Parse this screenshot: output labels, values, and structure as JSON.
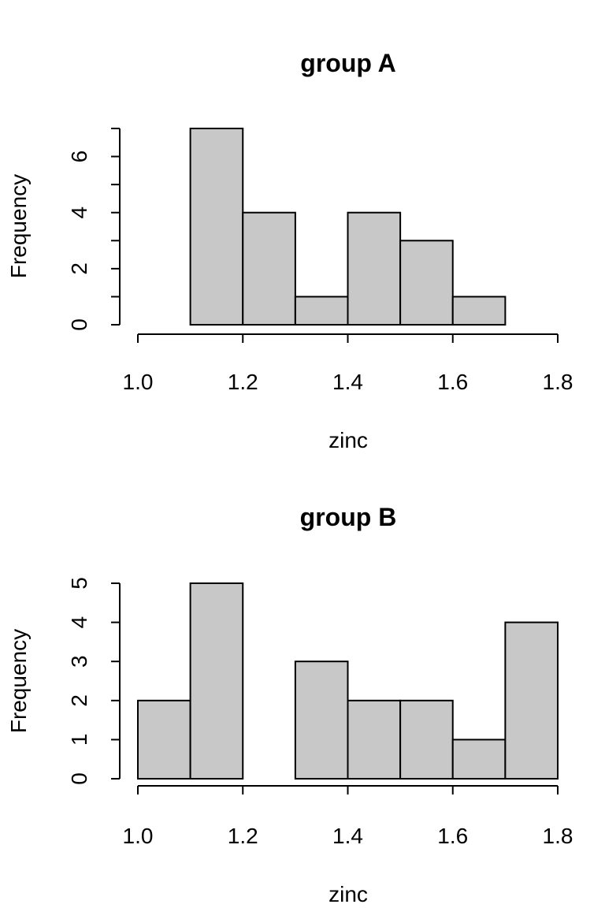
{
  "chart_data": [
    {
      "type": "bar",
      "title": "group A",
      "xlabel": "zinc",
      "ylabel": "Frequency",
      "bins": [
        [
          1.1,
          1.2
        ],
        [
          1.2,
          1.3
        ],
        [
          1.3,
          1.4
        ],
        [
          1.4,
          1.5
        ],
        [
          1.5,
          1.6
        ],
        [
          1.6,
          1.7
        ]
      ],
      "values": [
        7,
        4,
        1,
        4,
        3,
        1
      ],
      "xlim": [
        1.0,
        1.8
      ],
      "ylim": [
        0,
        7
      ],
      "xticks": [
        1.0,
        1.2,
        1.4,
        1.6,
        1.8
      ],
      "xtick_labels": [
        "1.0",
        "1.2",
        "1.4",
        "1.6",
        "1.8"
      ],
      "yticks": [
        0,
        1,
        2,
        3,
        4,
        5,
        6,
        7
      ],
      "yticks_labeled": [
        0,
        2,
        4,
        6
      ],
      "ytick_labels": [
        "0",
        "2",
        "4",
        "6"
      ],
      "bar_color": "#c8c8c8",
      "grid": false
    },
    {
      "type": "bar",
      "title": "group B",
      "xlabel": "zinc",
      "ylabel": "Frequency",
      "bins": [
        [
          1.0,
          1.1
        ],
        [
          1.1,
          1.2
        ],
        [
          1.2,
          1.3
        ],
        [
          1.3,
          1.4
        ],
        [
          1.4,
          1.5
        ],
        [
          1.5,
          1.6
        ],
        [
          1.6,
          1.7
        ],
        [
          1.7,
          1.8
        ]
      ],
      "values": [
        2,
        5,
        0,
        3,
        2,
        2,
        1,
        4
      ],
      "xlim": [
        1.0,
        1.8
      ],
      "ylim": [
        0,
        5
      ],
      "xticks": [
        1.0,
        1.2,
        1.4,
        1.6,
        1.8
      ],
      "xtick_labels": [
        "1.0",
        "1.2",
        "1.4",
        "1.6",
        "1.8"
      ],
      "yticks": [
        0,
        1,
        2,
        3,
        4,
        5
      ],
      "yticks_labeled": [
        0,
        1,
        2,
        3,
        4,
        5
      ],
      "ytick_labels": [
        "0",
        "1",
        "2",
        "3",
        "4",
        "5"
      ],
      "bar_color": "#c8c8c8",
      "grid": false
    }
  ]
}
